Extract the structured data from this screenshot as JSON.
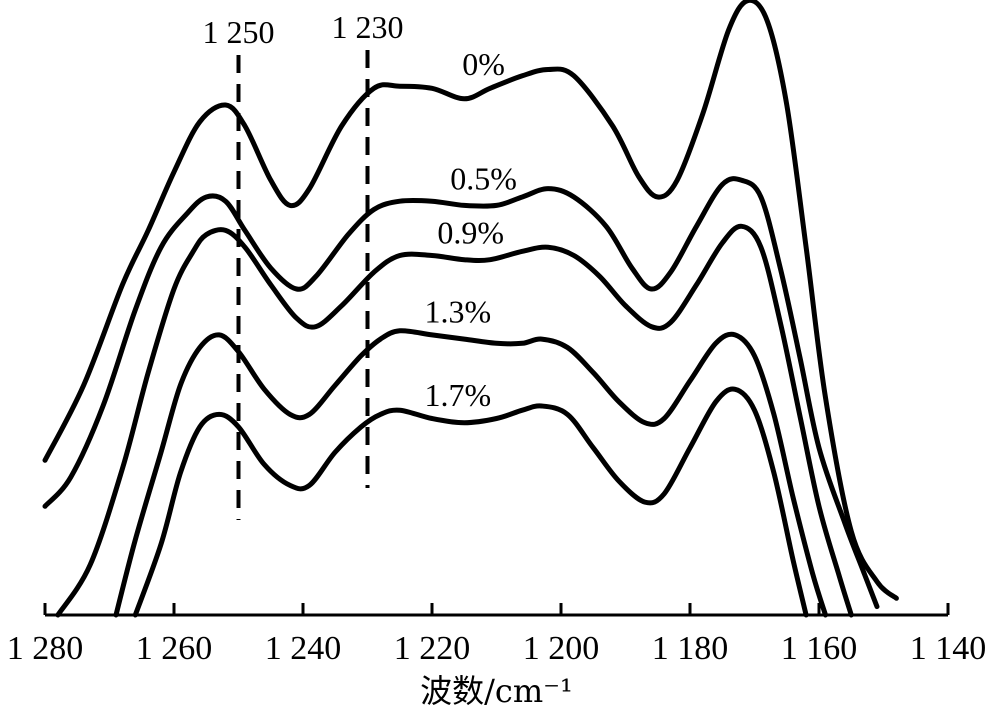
{
  "chart_data": {
    "type": "line",
    "title": "",
    "xlabel": "波数/cm⁻¹",
    "ylabel": "",
    "xlim": [
      1280,
      1140
    ],
    "x_reversed": true,
    "y_axis_shown": false,
    "grid": false,
    "legend": "none",
    "x_ticks": [
      1280,
      1260,
      1240,
      1220,
      1200,
      1180,
      1160,
      1140
    ],
    "x_tick_labels": [
      "1 280",
      "1 260",
      "1 240",
      "1 220",
      "1 200",
      "1 180",
      "1 160",
      "1 140"
    ],
    "reference_lines": [
      {
        "x": 1250,
        "label": "1 250"
      },
      {
        "x": 1230,
        "label": "1 230"
      }
    ],
    "series": [
      {
        "name": "0%",
        "points": [
          [
            1280,
            0.37
          ],
          [
            1274,
            0.55
          ],
          [
            1268,
            0.79
          ],
          [
            1264,
            0.92
          ],
          [
            1260,
            1.06
          ],
          [
            1256,
            1.18
          ],
          [
            1252,
            1.22
          ],
          [
            1249,
            1.17
          ],
          [
            1245,
            1.04
          ],
          [
            1242,
            0.98
          ],
          [
            1239,
            1.02
          ],
          [
            1234,
            1.17
          ],
          [
            1229,
            1.26
          ],
          [
            1225,
            1.265
          ],
          [
            1220,
            1.26
          ],
          [
            1215,
            1.235
          ],
          [
            1211,
            1.26
          ],
          [
            1206,
            1.29
          ],
          [
            1202,
            1.305
          ],
          [
            1198,
            1.29
          ],
          [
            1192,
            1.17
          ],
          [
            1188,
            1.05
          ],
          [
            1185,
            1.0
          ],
          [
            1182,
            1.04
          ],
          [
            1178,
            1.2
          ],
          [
            1174,
            1.4
          ],
          [
            1171,
            1.47
          ],
          [
            1168,
            1.42
          ],
          [
            1165,
            1.22
          ],
          [
            1162,
            0.88
          ],
          [
            1159,
            0.52
          ],
          [
            1155,
            0.2
          ],
          [
            1151,
            0.08
          ],
          [
            1148,
            0.04
          ]
        ]
      },
      {
        "name": "0.5%",
        "points": [
          [
            1280,
            0.26
          ],
          [
            1276,
            0.33
          ],
          [
            1271,
            0.5
          ],
          [
            1266,
            0.73
          ],
          [
            1262,
            0.88
          ],
          [
            1258,
            0.96
          ],
          [
            1255,
            1.0
          ],
          [
            1252,
            0.99
          ],
          [
            1249,
            0.92
          ],
          [
            1245,
            0.83
          ],
          [
            1241,
            0.78
          ],
          [
            1238,
            0.81
          ],
          [
            1233,
            0.91
          ],
          [
            1229,
            0.97
          ],
          [
            1225,
            0.99
          ],
          [
            1220,
            0.99
          ],
          [
            1215,
            0.98
          ],
          [
            1210,
            0.98
          ],
          [
            1206,
            1.0
          ],
          [
            1202,
            1.02
          ],
          [
            1198,
            1.0
          ],
          [
            1193,
            0.93
          ],
          [
            1189,
            0.83
          ],
          [
            1186,
            0.78
          ],
          [
            1183,
            0.82
          ],
          [
            1179,
            0.93
          ],
          [
            1175,
            1.03
          ],
          [
            1172,
            1.04
          ],
          [
            1169,
            1.0
          ],
          [
            1166,
            0.83
          ],
          [
            1163,
            0.62
          ],
          [
            1160,
            0.4
          ],
          [
            1156,
            0.22
          ],
          [
            1153,
            0.1
          ],
          [
            1151,
            0.02
          ]
        ]
      },
      {
        "name": "0.9%",
        "points": [
          [
            1278,
            0.0
          ],
          [
            1273,
            0.12
          ],
          [
            1268,
            0.35
          ],
          [
            1264,
            0.58
          ],
          [
            1260,
            0.78
          ],
          [
            1257,
            0.87
          ],
          [
            1255,
            0.91
          ],
          [
            1252,
            0.92
          ],
          [
            1249,
            0.88
          ],
          [
            1245,
            0.79
          ],
          [
            1241,
            0.71
          ],
          [
            1238,
            0.69
          ],
          [
            1234,
            0.74
          ],
          [
            1229,
            0.82
          ],
          [
            1225,
            0.86
          ],
          [
            1220,
            0.86
          ],
          [
            1215,
            0.85
          ],
          [
            1211,
            0.85
          ],
          [
            1206,
            0.87
          ],
          [
            1202,
            0.88
          ],
          [
            1198,
            0.86
          ],
          [
            1194,
            0.81
          ],
          [
            1190,
            0.74
          ],
          [
            1186,
            0.69
          ],
          [
            1183,
            0.7
          ],
          [
            1179,
            0.79
          ],
          [
            1175,
            0.89
          ],
          [
            1172,
            0.93
          ],
          [
            1169,
            0.88
          ],
          [
            1166,
            0.7
          ],
          [
            1163,
            0.48
          ],
          [
            1160,
            0.26
          ],
          [
            1157,
            0.1
          ],
          [
            1155,
            0.0
          ]
        ]
      },
      {
        "name": "1.3%",
        "points": [
          [
            1269,
            0.0
          ],
          [
            1266,
            0.18
          ],
          [
            1262,
            0.39
          ],
          [
            1259,
            0.55
          ],
          [
            1256,
            0.64
          ],
          [
            1253,
            0.67
          ],
          [
            1250,
            0.63
          ],
          [
            1246,
            0.54
          ],
          [
            1242,
            0.48
          ],
          [
            1239,
            0.48
          ],
          [
            1235,
            0.55
          ],
          [
            1231,
            0.62
          ],
          [
            1228,
            0.66
          ],
          [
            1225,
            0.68
          ],
          [
            1220,
            0.67
          ],
          [
            1215,
            0.66
          ],
          [
            1210,
            0.65
          ],
          [
            1206,
            0.65
          ],
          [
            1203,
            0.66
          ],
          [
            1199,
            0.64
          ],
          [
            1195,
            0.58
          ],
          [
            1191,
            0.51
          ],
          [
            1187,
            0.46
          ],
          [
            1184,
            0.47
          ],
          [
            1180,
            0.56
          ],
          [
            1176,
            0.65
          ],
          [
            1173,
            0.67
          ],
          [
            1170,
            0.62
          ],
          [
            1167,
            0.48
          ],
          [
            1164,
            0.28
          ],
          [
            1161,
            0.1
          ],
          [
            1159,
            0.0
          ]
        ]
      },
      {
        "name": "1.7%",
        "points": [
          [
            1266,
            0.0
          ],
          [
            1262,
            0.17
          ],
          [
            1259,
            0.34
          ],
          [
            1256,
            0.45
          ],
          [
            1253,
            0.48
          ],
          [
            1250,
            0.45
          ],
          [
            1246,
            0.36
          ],
          [
            1242,
            0.31
          ],
          [
            1239,
            0.31
          ],
          [
            1235,
            0.39
          ],
          [
            1231,
            0.45
          ],
          [
            1228,
            0.48
          ],
          [
            1225,
            0.49
          ],
          [
            1220,
            0.47
          ],
          [
            1215,
            0.46
          ],
          [
            1210,
            0.47
          ],
          [
            1206,
            0.49
          ],
          [
            1203,
            0.5
          ],
          [
            1199,
            0.48
          ],
          [
            1195,
            0.4
          ],
          [
            1191,
            0.32
          ],
          [
            1187,
            0.27
          ],
          [
            1184,
            0.29
          ],
          [
            1180,
            0.4
          ],
          [
            1176,
            0.51
          ],
          [
            1173,
            0.54
          ],
          [
            1170,
            0.49
          ],
          [
            1167,
            0.34
          ],
          [
            1164,
            0.13
          ],
          [
            1162,
            0.0
          ]
        ]
      }
    ],
    "series_label_anchor_x": [
      1212,
      1212,
      1214,
      1216,
      1216
    ]
  }
}
